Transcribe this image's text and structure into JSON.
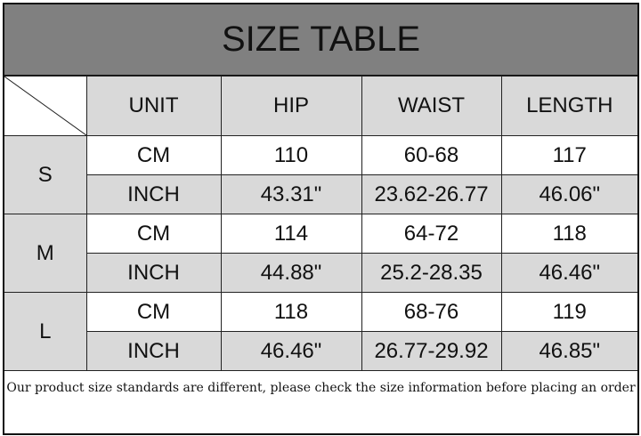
{
  "title": "SIZE TABLE",
  "headers": [
    "UNIT",
    "HIP",
    "WAIST",
    "LENGTH"
  ],
  "sizes": [
    {
      "size": "S",
      "rows": [
        [
          "CM",
          "110",
          "60-68",
          "117"
        ],
        [
          "INCH",
          "43.31\"",
          "23.62-26.77",
          "46.06\""
        ]
      ]
    },
    {
      "size": "M",
      "rows": [
        [
          "CM",
          "114",
          "64-72",
          "118"
        ],
        [
          "INCH",
          "44.88\"",
          "25.2-28.35",
          "46.46\""
        ]
      ]
    },
    {
      "size": "L",
      "rows": [
        [
          "CM",
          "118",
          "68-76",
          "119"
        ],
        [
          "INCH",
          "46.46\"",
          "26.77-29.92",
          "46.85\""
        ]
      ]
    }
  ],
  "note": "Our product size standards are different, please check the size information before placing an order"
}
